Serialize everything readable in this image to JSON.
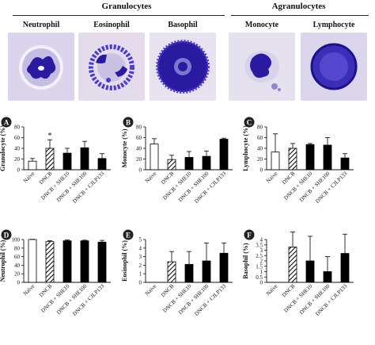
{
  "header": {
    "groups": [
      "Granulocytes",
      "Agranulocytes"
    ],
    "cells": [
      "Neutrophil",
      "Eosinophil",
      "Basophil",
      "Monocyte",
      "Lymphocyte"
    ]
  },
  "colors": {
    "smear_bg": "#dcd4ec",
    "stain_dark": "#2a1aa0",
    "stain_mid": "#4a3cc8",
    "stain_light": "#8f86d4",
    "bar_fill": "#000000",
    "bar_empty": "#ffffff"
  },
  "chart_data": [
    {
      "panel": "A",
      "type": "bar",
      "categories": [
        "Naive",
        "DNCB",
        "DNCB + SHE10",
        "DNCB + SHE100",
        "DNCB + CJLP133"
      ],
      "ylabel": "Granulocyte (%)",
      "ylim": [
        0,
        80
      ],
      "yticks": [
        0,
        20,
        40,
        60,
        80
      ],
      "values": [
        16,
        40,
        31,
        41,
        21
      ],
      "errors": [
        5,
        16,
        9,
        12,
        9
      ],
      "annotations": [
        {
          "category": "DNCB",
          "text": "*"
        }
      ]
    },
    {
      "panel": "B",
      "type": "bar",
      "categories": [
        "Naive",
        "DNCB",
        "DNCB + SHE10",
        "DNCB + SHE100",
        "DNCB + CJLP133"
      ],
      "ylabel": "Monocyte (%)",
      "ylim": [
        0,
        80
      ],
      "yticks": [
        0,
        20,
        40,
        60,
        80
      ],
      "values": [
        48,
        19,
        23,
        25,
        57
      ],
      "errors": [
        10,
        8,
        11,
        10,
        2
      ]
    },
    {
      "panel": "C",
      "type": "bar",
      "categories": [
        "Naive",
        "DNCB",
        "DNCB + SHE10",
        "DNCB + SHE100",
        "DNCB + CJLP133"
      ],
      "ylabel": "Lymphocyte (%)",
      "ylim": [
        0,
        80
      ],
      "yticks": [
        0,
        20,
        40,
        60,
        80
      ],
      "values": [
        33,
        40,
        47,
        46,
        22
      ],
      "errors": [
        34,
        9,
        2,
        14,
        8
      ]
    },
    {
      "panel": "D",
      "type": "bar",
      "categories": [
        "Naive",
        "DNCB",
        "DNCB + SHE10",
        "DNCB + SHE100",
        "DNCB + CJLP133"
      ],
      "ylabel": "Neutrophil (%)",
      "ylim": [
        0,
        100
      ],
      "yticks": [
        0,
        20,
        40,
        60,
        80,
        100
      ],
      "values": [
        100,
        95,
        97,
        97,
        94
      ],
      "errors": [
        0.5,
        2,
        2,
        1.5,
        4
      ]
    },
    {
      "panel": "E",
      "type": "bar",
      "categories": [
        "Naive",
        "DNCB",
        "DNCB + SHE10",
        "DNCB + SHE100",
        "DNCB + CJLP133"
      ],
      "ylabel": "Eosinophil (%)",
      "ylim": [
        0,
        5
      ],
      "yticks": [
        0,
        1,
        2,
        3,
        4,
        5
      ],
      "values": [
        0,
        2.4,
        2.1,
        2.5,
        3.4
      ],
      "errors": [
        0,
        1.2,
        1.5,
        2.1,
        1.2
      ]
    },
    {
      "panel": "F",
      "type": "bar",
      "categories": [
        "Naive",
        "DNCB",
        "DNCB + SHE10",
        "DNCB + SHE100",
        "DNCB + CJLP133"
      ],
      "ylabel": "Basophil (%)",
      "ylim": [
        0,
        4
      ],
      "yticks": [
        0,
        0.5,
        1,
        1.5,
        2,
        2.5,
        3,
        3.5,
        4
      ],
      "values": [
        0,
        3.3,
        2,
        1,
        2.7
      ],
      "errors": [
        0,
        1.4,
        2.3,
        1.4,
        1.8
      ]
    }
  ]
}
